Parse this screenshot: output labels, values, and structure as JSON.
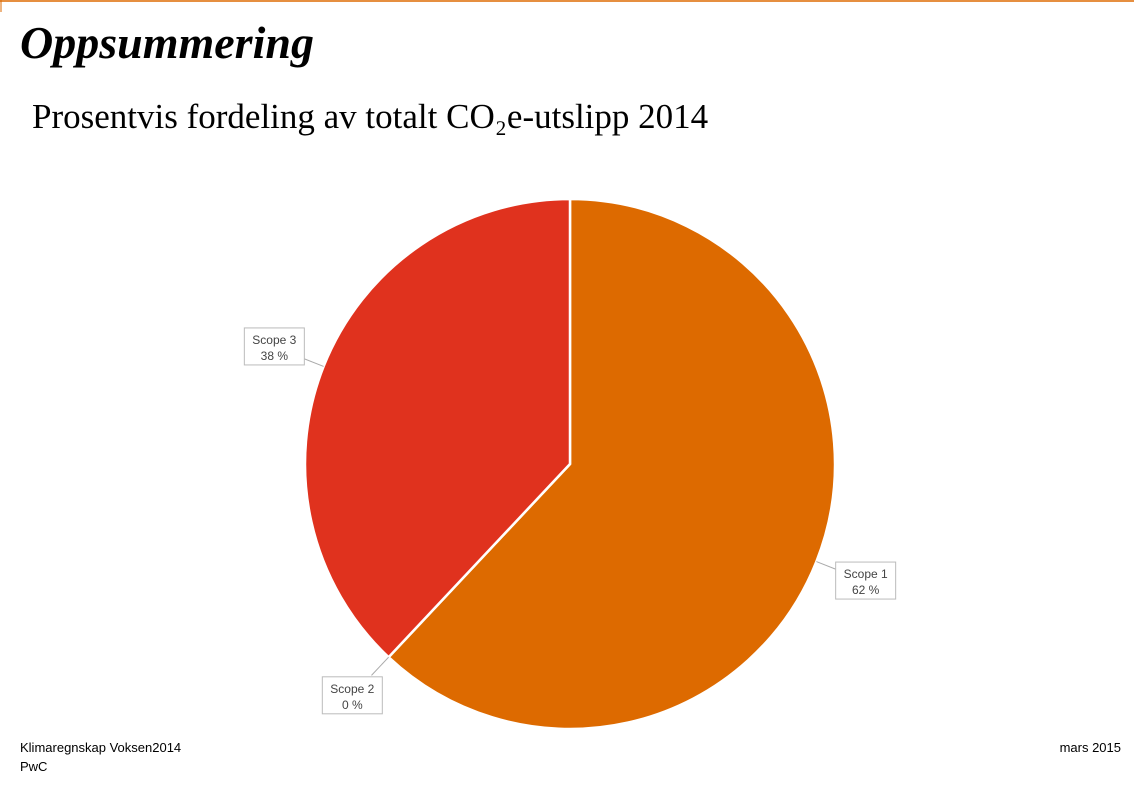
{
  "header": {
    "title": "Oppsummering"
  },
  "chart_data": {
    "type": "pie",
    "title": "Prosentvis fordeling av totalt CO₂e-utslipp 2014",
    "categories": [
      "Scope 1",
      "Scope 2",
      "Scope 3"
    ],
    "values": [
      62,
      0,
      38
    ],
    "value_labels": [
      "62 %",
      "0 %",
      "38 %"
    ],
    "colors": [
      "#dd6a00",
      "#c8c8c8",
      "#e0321e"
    ]
  },
  "footer": {
    "left": [
      "Klimaregnskap Voksen2014",
      "PwC"
    ],
    "right": "mars 2015"
  }
}
